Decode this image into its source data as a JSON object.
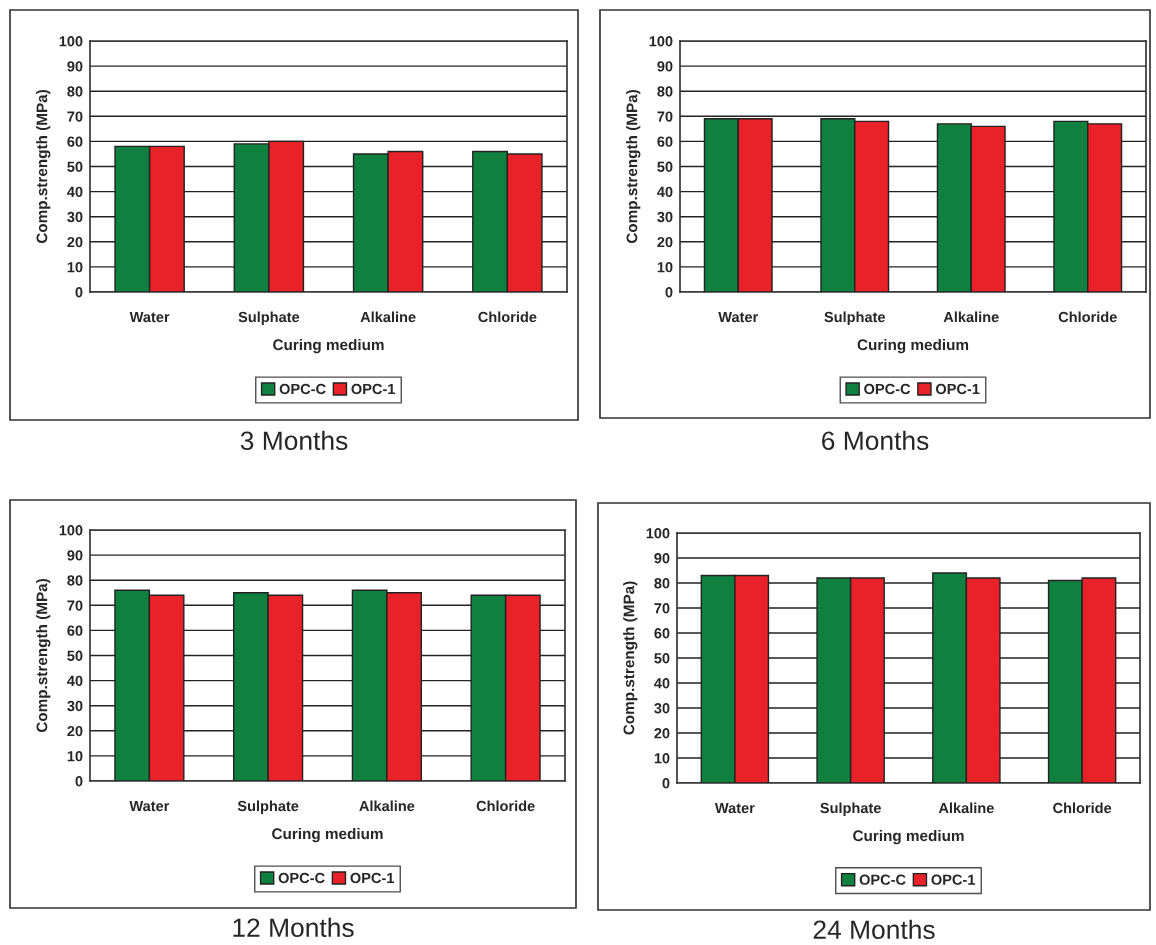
{
  "chart_data": [
    {
      "type": "bar",
      "title": "3 Months",
      "xlabel": "Curing medium",
      "ylabel": "Comp.strength (MPa)",
      "categories": [
        "Water",
        "Sulphate",
        "Alkaline",
        "Chloride"
      ],
      "series": [
        {
          "name": "OPC-C",
          "color": "#108040",
          "values": [
            58,
            59,
            55,
            56
          ]
        },
        {
          "name": "OPC-1",
          "color": "#e82228",
          "values": [
            58,
            60,
            56,
            55
          ]
        }
      ],
      "ylim": [
        0,
        100
      ],
      "yticks": [
        0,
        10,
        20,
        30,
        40,
        50,
        60,
        70,
        80,
        90,
        100
      ],
      "grid": "y",
      "legend": "bottom"
    },
    {
      "type": "bar",
      "title": "6 Months",
      "xlabel": "Curing medium",
      "ylabel": "Comp.strength (MPa)",
      "categories": [
        "Water",
        "Sulphate",
        "Alkaline",
        "Chloride"
      ],
      "series": [
        {
          "name": "OPC-C",
          "color": "#108040",
          "values": [
            69,
            69,
            67,
            68
          ]
        },
        {
          "name": "OPC-1",
          "color": "#e82228",
          "values": [
            69,
            68,
            66,
            67
          ]
        }
      ],
      "ylim": [
        0,
        100
      ],
      "yticks": [
        0,
        10,
        20,
        30,
        40,
        50,
        60,
        70,
        80,
        90,
        100
      ],
      "grid": "y",
      "legend": "bottom"
    },
    {
      "type": "bar",
      "title": "12 Months",
      "xlabel": "Curing medium",
      "ylabel": "Comp.strength (MPa)",
      "categories": [
        "Water",
        "Sulphate",
        "Alkaline",
        "Chloride"
      ],
      "series": [
        {
          "name": "OPC-C",
          "color": "#108040",
          "values": [
            76,
            75,
            76,
            74
          ]
        },
        {
          "name": "OPC-1",
          "color": "#e82228",
          "values": [
            74,
            74,
            75,
            74
          ]
        }
      ],
      "ylim": [
        0,
        100
      ],
      "yticks": [
        0,
        10,
        20,
        30,
        40,
        50,
        60,
        70,
        80,
        90,
        100
      ],
      "grid": "y",
      "legend": "bottom"
    },
    {
      "type": "bar",
      "title": "24 Months",
      "xlabel": "Curing medium",
      "ylabel": "Comp.strength (MPa)",
      "categories": [
        "Water",
        "Sulphate",
        "Alkaline",
        "Chloride"
      ],
      "series": [
        {
          "name": "OPC-C",
          "color": "#108040",
          "values": [
            83,
            82,
            84,
            81
          ]
        },
        {
          "name": "OPC-1",
          "color": "#e82228",
          "values": [
            83,
            82,
            82,
            82
          ]
        }
      ],
      "ylim": [
        0,
        100
      ],
      "yticks": [
        0,
        10,
        20,
        30,
        40,
        50,
        60,
        70,
        80,
        90,
        100
      ],
      "grid": "y",
      "legend": "bottom"
    }
  ]
}
